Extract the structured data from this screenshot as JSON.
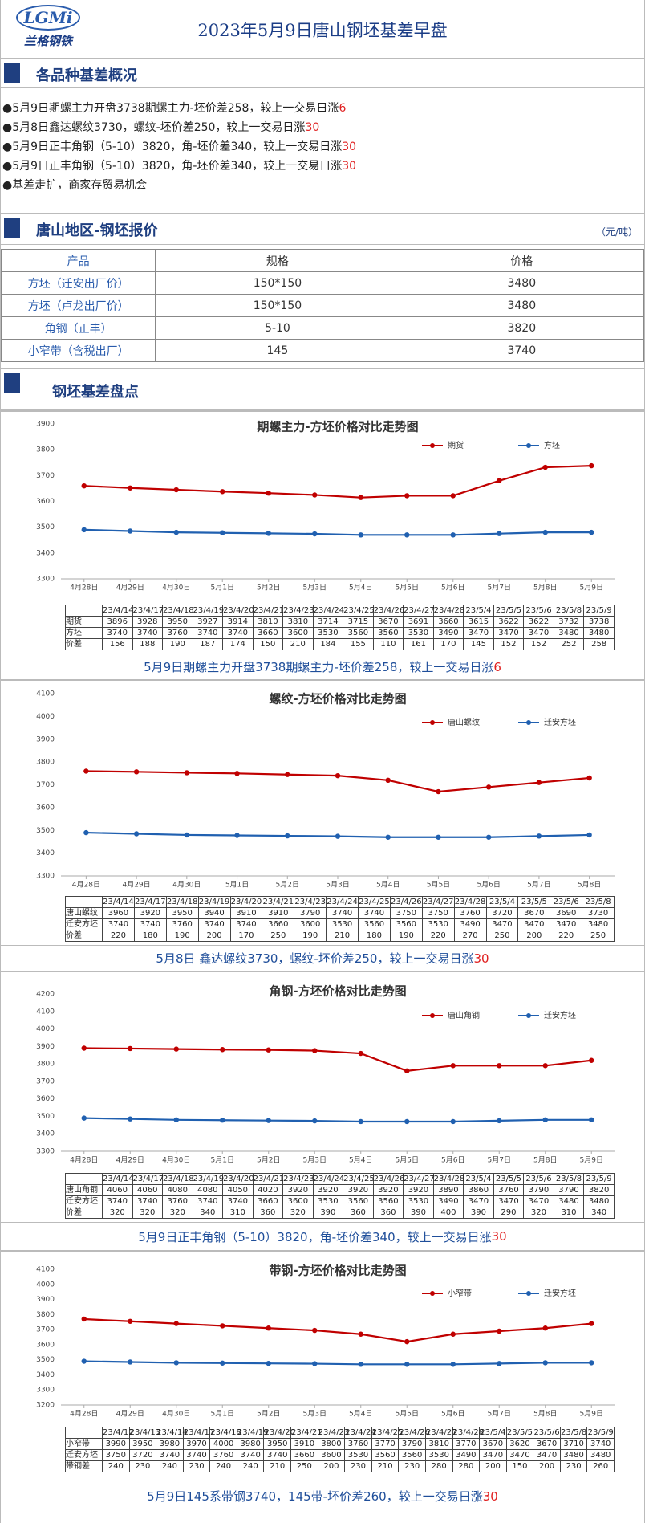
{
  "header": {
    "logo": "LGMi",
    "logo_name": "兰格钢铁",
    "title": "2023年5月9日唐山钢坯基差早盘"
  },
  "summary": {
    "title": "各品种基差概况",
    "items": [
      {
        "text": "5月9日期螺主力开盘3738期螺主力-坯价差258，较上一交易日涨",
        "change": "6"
      },
      {
        "text": "5月8日鑫达螺纹3730，螺纹-坯价差250，较上一交易日涨",
        "change": "30"
      },
      {
        "text": "5月9日正丰角钢（5-10）3820，角-坯价差340，较上一交易日涨",
        "change": "30"
      },
      {
        "text": "5月9日正丰角钢（5-10）3820，角-坯价差340，较上一交易日涨",
        "change": "30"
      },
      {
        "text": "基差走扩，商家存贸易机会"
      }
    ]
  },
  "price_table": {
    "title": "唐山地区-钢坯报价",
    "unit": "（元/吨）",
    "header": [
      "产品",
      "规格",
      "价格"
    ],
    "rows": [
      [
        "方坯（迁安出厂价）",
        "150*150",
        3480
      ],
      [
        "方坯（卢龙出厂价）",
        "150*150",
        3480
      ],
      [
        "角钢（正丰）",
        "5-10",
        3820
      ],
      [
        "小窄带（含税出厂）",
        "145",
        3740
      ]
    ]
  },
  "charts_title": "钢坯基差盘点",
  "chart_data": [
    {
      "type": "line",
      "title": "期螺主力-方坯价格对比走势图",
      "legend": "upper right",
      "grid": false,
      "categories": [
        "4月28日",
        "4月29日",
        "4月30日",
        "5月1日",
        "5月2日",
        "5月3日",
        "5月4日",
        "5月5日",
        "5月6日",
        "5月7日",
        "5月8日",
        "5月9日"
      ],
      "series": [
        {
          "name": "期货",
          "color": "#c00000",
          "values": [
            3660,
            3652,
            3645,
            3638,
            3632,
            3625,
            3615,
            3622,
            3622,
            3680,
            3732,
            3738
          ]
        },
        {
          "name": "方坯",
          "color": "#2060b0",
          "values": [
            3490,
            3485,
            3480,
            3478,
            3476,
            3474,
            3470,
            3470,
            3470,
            3475,
            3480,
            3480
          ]
        }
      ],
      "ylim": [
        3300,
        3900
      ],
      "yticks": [
        3300,
        3400,
        3500,
        3600,
        3700,
        3800,
        3900
      ],
      "table": {
        "columns": [
          "23/4/14",
          "23/4/17",
          "23/4/18",
          "23/4/19",
          "23/4/20",
          "23/4/21",
          "23/4/23",
          "23/4/24",
          "23/4/25",
          "23/4/26",
          "23/4/27",
          "23/4/28",
          "23/5/4",
          "23/5/5",
          "23/5/6",
          "23/5/8",
          "23/5/9"
        ],
        "rows": [
          {
            "name": "期货",
            "values": [
              3896,
              3928,
              3950,
              3927,
              3914,
              3810,
              3810,
              3714,
              3715,
              3670,
              3691,
              3660,
              3615,
              3622,
              3622,
              3732,
              3738
            ]
          },
          {
            "name": "方坯",
            "values": [
              3740,
              3740,
              3760,
              3740,
              3740,
              3660,
              3600,
              3530,
              3560,
              3560,
              3530,
              3490,
              3470,
              3470,
              3470,
              3480,
              3480
            ]
          },
          {
            "name": "价差",
            "values": [
              156,
              188,
              190,
              187,
              174,
              150,
              210,
              184,
              155,
              110,
              161,
              170,
              145,
              152,
              152,
              252,
              258
            ]
          }
        ]
      },
      "caption": {
        "text": "5月9日期螺主力开盘3738期螺主力-坯价差258，较上一交易日涨",
        "change": "6"
      }
    },
    {
      "type": "line",
      "title": "螺纹-方坯价格对比走势图",
      "legend": "upper right",
      "grid": false,
      "categories": [
        "4月28日",
        "4月29日",
        "4月30日",
        "5月1日",
        "5月2日",
        "5月3日",
        "5月4日",
        "5月5日",
        "5月6日",
        "5月7日",
        "5月8日"
      ],
      "series": [
        {
          "name": "唐山螺纹",
          "color": "#c00000",
          "values": [
            3760,
            3757,
            3753,
            3750,
            3745,
            3740,
            3720,
            3670,
            3690,
            3710,
            3730
          ]
        },
        {
          "name": "迁安方坯",
          "color": "#2060b0",
          "values": [
            3490,
            3485,
            3480,
            3478,
            3476,
            3474,
            3470,
            3470,
            3470,
            3475,
            3480
          ]
        }
      ],
      "ylim": [
        3300,
        4100
      ],
      "yticks": [
        3300,
        3400,
        3500,
        3600,
        3700,
        3800,
        3900,
        4000,
        4100
      ],
      "table": {
        "columns": [
          "23/4/14",
          "23/4/17",
          "23/4/18",
          "23/4/19",
          "23/4/20",
          "23/4/21",
          "23/4/23",
          "23/4/24",
          "23/4/25",
          "23/4/26",
          "23/4/27",
          "23/4/28",
          "23/5/4",
          "23/5/5",
          "23/5/6",
          "23/5/8"
        ],
        "rows": [
          {
            "name": "唐山螺纹",
            "values": [
              3960,
              3920,
              3950,
              3940,
              3910,
              3910,
              3790,
              3740,
              3740,
              3750,
              3750,
              3760,
              3720,
              3670,
              3690,
              3730
            ]
          },
          {
            "name": "迁安方坯",
            "values": [
              3740,
              3740,
              3760,
              3740,
              3740,
              3660,
              3600,
              3530,
              3560,
              3560,
              3530,
              3490,
              3470,
              3470,
              3470,
              3480
            ]
          },
          {
            "name": "价差",
            "values": [
              220,
              180,
              190,
              200,
              170,
              250,
              190,
              210,
              180,
              190,
              220,
              270,
              250,
              200,
              220,
              250
            ]
          }
        ]
      },
      "caption": {
        "text": "5月8日 鑫达螺纹3730，螺纹-坯价差250，较上一交易日涨",
        "change": "30"
      }
    },
    {
      "type": "line",
      "title": "角钢-方坯价格对比走势图",
      "legend": "upper right",
      "grid": false,
      "categories": [
        "4月28日",
        "4月29日",
        "4月30日",
        "5月1日",
        "5月2日",
        "5月3日",
        "5月4日",
        "5月5日",
        "5月6日",
        "5月7日",
        "5月8日",
        "5月9日"
      ],
      "series": [
        {
          "name": "唐山角钢",
          "color": "#c00000",
          "values": [
            3890,
            3888,
            3885,
            3882,
            3880,
            3876,
            3860,
            3760,
            3790,
            3790,
            3790,
            3820
          ]
        },
        {
          "name": "迁安方坯",
          "color": "#2060b0",
          "values": [
            3490,
            3485,
            3480,
            3478,
            3476,
            3474,
            3470,
            3470,
            3470,
            3475,
            3480,
            3480
          ]
        }
      ],
      "ylim": [
        3300,
        4200
      ],
      "yticks": [
        3300,
        3400,
        3500,
        3600,
        3700,
        3800,
        3900,
        4000,
        4100,
        4200
      ],
      "table": {
        "columns": [
          "23/4/14",
          "23/4/17",
          "23/4/18",
          "23/4/19",
          "23/4/20",
          "23/4/21",
          "23/4/23",
          "23/4/24",
          "23/4/25",
          "23/4/26",
          "23/4/27",
          "23/4/28",
          "23/5/4",
          "23/5/5",
          "23/5/6",
          "23/5/8",
          "23/5/9"
        ],
        "rows": [
          {
            "name": "唐山角钢",
            "values": [
              4060,
              4060,
              4080,
              4080,
              4050,
              4020,
              3920,
              3920,
              3920,
              3920,
              3920,
              3890,
              3860,
              3760,
              3790,
              3790,
              3820
            ]
          },
          {
            "name": "迁安方坯",
            "values": [
              3740,
              3740,
              3760,
              3740,
              3740,
              3660,
              3600,
              3530,
              3560,
              3560,
              3530,
              3490,
              3470,
              3470,
              3470,
              3480,
              3480
            ]
          },
          {
            "name": "价差",
            "values": [
              320,
              320,
              320,
              340,
              310,
              360,
              320,
              390,
              360,
              360,
              390,
              400,
              390,
              290,
              320,
              310,
              340
            ]
          }
        ]
      },
      "caption": {
        "text": "5月9日正丰角钢（5-10）3820，角-坯价差340，较上一交易日涨",
        "change": "30"
      }
    },
    {
      "type": "line",
      "title": "带钢-方坯价格对比走势图",
      "legend": "upper right",
      "grid": false,
      "categories": [
        "4月28日",
        "4月29日",
        "4月30日",
        "5月1日",
        "5月2日",
        "5月3日",
        "5月4日",
        "5月5日",
        "5月6日",
        "5月7日",
        "5月8日",
        "5月9日"
      ],
      "series": [
        {
          "name": "小窄带",
          "color": "#c00000",
          "values": [
            3770,
            3755,
            3740,
            3725,
            3710,
            3695,
            3670,
            3620,
            3670,
            3690,
            3710,
            3740
          ]
        },
        {
          "name": "迁安方坯",
          "color": "#2060b0",
          "values": [
            3490,
            3485,
            3480,
            3478,
            3476,
            3474,
            3470,
            3470,
            3470,
            3475,
            3480,
            3480
          ]
        }
      ],
      "ylim": [
        3200,
        4100
      ],
      "yticks": [
        3200,
        3300,
        3400,
        3500,
        3600,
        3700,
        3800,
        3900,
        4000,
        4100
      ],
      "table": {
        "columns": [
          "23/4/12",
          "23/4/13",
          "23/4/14",
          "23/4/17",
          "23/4/18",
          "23/4/19",
          "23/4/20",
          "23/4/21",
          "23/4/23",
          "23/4/24",
          "23/4/25",
          "23/4/26",
          "23/4/27",
          "23/4/28",
          "23/5/4",
          "23/5/5",
          "23/5/6",
          "23/5/8",
          "23/5/9"
        ],
        "rows": [
          {
            "name": "小窄带",
            "values": [
              3990,
              3950,
              3980,
              3970,
              4000,
              3980,
              3950,
              3910,
              3800,
              3760,
              3770,
              3790,
              3810,
              3770,
              3670,
              3620,
              3670,
              3710,
              3740
            ]
          },
          {
            "name": "迁安方坯",
            "values": [
              3750,
              3720,
              3740,
              3740,
              3760,
              3740,
              3740,
              3660,
              3600,
              3530,
              3560,
              3560,
              3530,
              3490,
              3470,
              3470,
              3470,
              3480,
              3480
            ]
          },
          {
            "name": "带钢差",
            "values": [
              240,
              230,
              240,
              230,
              240,
              240,
              210,
              250,
              200,
              230,
              210,
              230,
              280,
              280,
              200,
              150,
              200,
              230,
              260
            ]
          }
        ]
      },
      "caption": {
        "text": "5月9日145系带钢3740，145带-坯价差260，较上一交易日涨",
        "change": "30"
      }
    }
  ]
}
